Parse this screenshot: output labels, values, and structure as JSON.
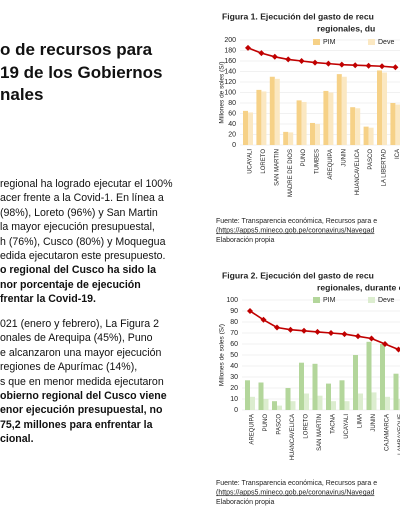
{
  "document": {
    "heading": [
      "o de recursos para",
      "19 de los Gobiernos",
      "nales"
    ],
    "paragraphs": [
      {
        "lines": [
          {
            "text": "regional ha logrado ejecutar el 100%",
            "bold": false
          },
          {
            "text": "acer frente a la Covid-1. En línea a",
            "bold": false
          },
          {
            "text": "(98%), Loreto (96%) y San Martin",
            "bold": false
          },
          {
            "text": "la mayor ejecución presupuestal,",
            "bold": false
          },
          {
            "text": "h (76%), Cusco (80%) y Moquegua",
            "bold": false
          },
          {
            "text": "edida ejecutaron este presupuesto.",
            "bold": false
          },
          {
            "text": "o regional del Cusco ha sido la",
            "bold": true
          },
          {
            "text": "nor porcentaje de ejecución",
            "bold": true
          },
          {
            "text": "frentar la Covid-19.",
            "bold": true
          }
        ]
      },
      {
        "lines": [
          {
            "text": "021 (enero y febrero), La Figura 2",
            "bold": false
          },
          {
            "text": "onales de Arequipa (45%), Puno",
            "bold": false
          },
          {
            "text": "e alcanzaron una mayor ejecución",
            "bold": false
          },
          {
            "text": "regiones de Apurímac (14%),",
            "bold": false
          },
          {
            "text": "s que en menor medida ejecutaron",
            "bold": false
          },
          {
            "text": "obierno regional del Cusco viene",
            "bold": true
          },
          {
            "text": "enor ejecución presupuestal, no",
            "bold": true
          },
          {
            "text": "75,2 millones para enfrentar la",
            "bold": true
          },
          {
            "text": "cional.",
            "bold": true
          }
        ]
      }
    ]
  },
  "chart_data": [
    {
      "type": "bar",
      "title": [
        "Figura 1. Ejecución del gasto de recu",
        "regionales, du"
      ],
      "ylabel": "Millones de soles (S/)",
      "categories": [
        "UCAYALI",
        "LORETO",
        "SAN MARTIN",
        "MADRE DE DIOS",
        "PUNO",
        "TUMBES",
        "AREQUIPA",
        "JUNIN",
        "HUANCAVELICA",
        "PASCO",
        "LA LIBERTAD",
        "ICA"
      ],
      "series": [
        {
          "name": "PIM",
          "color": "#f6d187",
          "values": [
            65,
            105,
            130,
            25,
            85,
            42,
            103,
            135,
            72,
            35,
            142,
            80
          ]
        },
        {
          "name": "Deve",
          "color": "#fbe8c2",
          "values": [
            62,
            102,
            126,
            24,
            82,
            40,
            100,
            130,
            70,
            33,
            138,
            77
          ]
        },
        {
          "type": "line",
          "color": "#c00000",
          "values": [
            185,
            175,
            168,
            163,
            160,
            157,
            155,
            153,
            152,
            151,
            150,
            148
          ]
        }
      ],
      "ylim": [
        0,
        200
      ],
      "yticks": [
        0,
        20,
        40,
        60,
        80,
        100,
        120,
        140,
        160,
        180,
        200
      ],
      "grid": true,
      "source": [
        "Fuente: Transparencia económica, Recursos para e",
        "(https://apps5.mineco.gob.pe/coronavirus/Navegad",
        "Elaboración propia"
      ]
    },
    {
      "type": "bar",
      "title": [
        "Figura 2. Ejecución del gasto de recu",
        "regionales, durante el a"
      ],
      "ylabel": "Millones de soles (S/)",
      "categories": [
        "AREQUIPA",
        "PUNO",
        "PASCO",
        "HUANCAVELICA",
        "LORETO",
        "SAN MARTIN",
        "TACNA",
        "UCAYALI",
        "LIMA",
        "JUNIN",
        "CAJAMARCA",
        "LAMBAYEQUE"
      ],
      "series": [
        {
          "name": "PIM",
          "color": "#b3d69b",
          "values": [
            27,
            25,
            8,
            20,
            43,
            42,
            24,
            27,
            50,
            62,
            60,
            33
          ]
        },
        {
          "name": "Deve",
          "color": "#dcedcf",
          "values": [
            12,
            10,
            4,
            8,
            15,
            13,
            8,
            8,
            15,
            16,
            12,
            10
          ]
        },
        {
          "type": "line",
          "color": "#c00000",
          "values": [
            90,
            82,
            75,
            73,
            72,
            71,
            70,
            69,
            67,
            65,
            60,
            55
          ]
        }
      ],
      "ylim": [
        0,
        100
      ],
      "yticks": [
        0,
        10,
        20,
        30,
        40,
        50,
        60,
        70,
        80,
        90,
        100
      ],
      "grid": true,
      "source": [
        "Fuente: Transparencia económica, Recursos para e",
        "(https://apps5.mineco.gob.pe/coronavirus/Navegad",
        "Elaboración propia"
      ]
    }
  ]
}
